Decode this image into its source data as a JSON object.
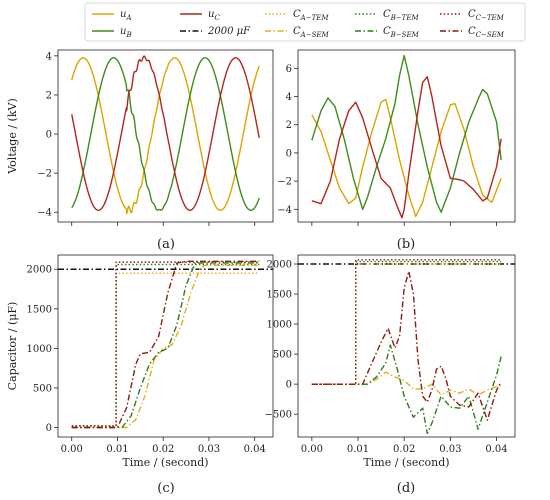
{
  "legend": {
    "entries": [
      {
        "key": "uA",
        "main": "u",
        "sub": "A",
        "color": "#d9a600",
        "dash": "solid"
      },
      {
        "key": "uC",
        "main": "u",
        "sub": "C",
        "color": "#b3261e",
        "dash": "solid"
      },
      {
        "key": "CATEM",
        "main": "C",
        "sub": "A−TEM",
        "color": "#e0b020",
        "dash": "dot"
      },
      {
        "key": "CBTEM",
        "main": "C",
        "sub": "B−TEM",
        "color": "#2e7d1a",
        "dash": "dot"
      },
      {
        "key": "CCTEM",
        "main": "C",
        "sub": "C−TEM",
        "color": "#8b1a0e",
        "dash": "dot"
      },
      {
        "key": "uB",
        "main": "u",
        "sub": "B",
        "color": "#3c8c1e",
        "dash": "solid"
      },
      {
        "key": "C2000",
        "main": "2000 μF",
        "sub": "",
        "color": "#111111",
        "dash": "dashdot"
      },
      {
        "key": "CASEM",
        "main": "C",
        "sub": "A−SEM",
        "color": "#e0b020",
        "dash": "dashdot"
      },
      {
        "key": "CBSEM",
        "main": "C",
        "sub": "B−SEM",
        "color": "#2e7d1a",
        "dash": "dashdot"
      },
      {
        "key": "CCSEM",
        "main": "C",
        "sub": "C−SEM",
        "color": "#8b1a0e",
        "dash": "dashdot"
      }
    ]
  },
  "panel_labels": [
    "(a)",
    "(b)",
    "(c)",
    "(d)"
  ],
  "chart_data": [
    {
      "panel": "(a)",
      "type": "line",
      "xlabel": "",
      "ylabel": "Voltage / (kV)",
      "xlim": [
        -0.003,
        0.044
      ],
      "ylim": [
        -4.5,
        4.3
      ],
      "yticks": [
        -4,
        -2,
        0,
        2,
        4
      ],
      "signal": {
        "amplitude": 3.9,
        "frequency_hz": 50,
        "phase_A_deg": 45,
        "t_end": 0.041
      },
      "series": [
        {
          "name": "u_A",
          "color": "#d9a600",
          "phase_deg": 45
        },
        {
          "name": "u_B",
          "color": "#3c8c1e",
          "phase_deg": -75
        },
        {
          "name": "u_C",
          "color": "#b3261e",
          "phase_deg": 165
        }
      ]
    },
    {
      "panel": "(b)",
      "type": "line",
      "xlabel": "",
      "ylabel": "",
      "xlim": [
        -0.003,
        0.044
      ],
      "ylim": [
        -4.9,
        7.3
      ],
      "yticks": [
        -4,
        -2,
        0,
        2,
        4,
        6
      ],
      "series": [
        {
          "name": "u_A",
          "color": "#d9a600",
          "points": [
            [
              0,
              2.7
            ],
            [
              0.002,
              1.5
            ],
            [
              0.004,
              -0.5
            ],
            [
              0.006,
              -2.5
            ],
            [
              0.008,
              -3.6
            ],
            [
              0.0095,
              -3.2
            ],
            [
              0.011,
              -1
            ],
            [
              0.013,
              1.5
            ],
            [
              0.015,
              3.6
            ],
            [
              0.016,
              3.8
            ],
            [
              0.017,
              2.5
            ],
            [
              0.019,
              -0.5
            ],
            [
              0.021,
              -3
            ],
            [
              0.0225,
              -4.5
            ],
            [
              0.024,
              -3.5
            ],
            [
              0.026,
              -1
            ],
            [
              0.028,
              1.5
            ],
            [
              0.03,
              3.4
            ],
            [
              0.031,
              3.5
            ],
            [
              0.033,
              1.6
            ],
            [
              0.035,
              -1
            ],
            [
              0.037,
              -3
            ],
            [
              0.039,
              -3.5
            ],
            [
              0.041,
              -1.8
            ]
          ]
        },
        {
          "name": "u_B",
          "color": "#3c8c1e",
          "points": [
            [
              0,
              0.9
            ],
            [
              0.002,
              3
            ],
            [
              0.0035,
              3.9
            ],
            [
              0.005,
              3.3
            ],
            [
              0.007,
              1
            ],
            [
              0.009,
              -1.8
            ],
            [
              0.011,
              -4
            ],
            [
              0.012,
              -3.2
            ],
            [
              0.014,
              -1
            ],
            [
              0.016,
              1
            ],
            [
              0.018,
              3.5
            ],
            [
              0.019,
              5.5
            ],
            [
              0.02,
              6.9
            ],
            [
              0.021,
              5.5
            ],
            [
              0.023,
              2
            ],
            [
              0.025,
              -1
            ],
            [
              0.027,
              -3.5
            ],
            [
              0.028,
              -4.2
            ],
            [
              0.03,
              -2.5
            ],
            [
              0.032,
              0
            ],
            [
              0.034,
              2.2
            ],
            [
              0.036,
              3.8
            ],
            [
              0.037,
              4.5
            ],
            [
              0.038,
              4.2
            ],
            [
              0.04,
              2.2
            ],
            [
              0.041,
              -0.5
            ]
          ]
        },
        {
          "name": "u_C",
          "color": "#b3261e",
          "points": [
            [
              0,
              -3.4
            ],
            [
              0.002,
              -3.6
            ],
            [
              0.004,
              -2
            ],
            [
              0.006,
              1
            ],
            [
              0.008,
              3
            ],
            [
              0.0095,
              3.6
            ],
            [
              0.011,
              2.5
            ],
            [
              0.013,
              0.3
            ],
            [
              0.015,
              -1.8
            ],
            [
              0.017,
              -2.5
            ],
            [
              0.0185,
              -3.8
            ],
            [
              0.0195,
              -4.6
            ],
            [
              0.02,
              -4
            ],
            [
              0.021,
              -1.5
            ],
            [
              0.023,
              3
            ],
            [
              0.024,
              5
            ],
            [
              0.025,
              5.4
            ],
            [
              0.026,
              4
            ],
            [
              0.028,
              0.5
            ],
            [
              0.03,
              -1.8
            ],
            [
              0.032,
              -1.9
            ],
            [
              0.033,
              -2
            ],
            [
              0.035,
              -2.6
            ],
            [
              0.037,
              -3.4
            ],
            [
              0.038,
              -3.2
            ],
            [
              0.04,
              -1
            ],
            [
              0.041,
              1
            ]
          ]
        }
      ]
    },
    {
      "panel": "(c)",
      "type": "line",
      "xlabel": "Time / (second)",
      "ylabel": "Capacitor / (μF)",
      "xlim": [
        -0.003,
        0.044
      ],
      "ylim": [
        -120,
        2180
      ],
      "xticks": [
        0.0,
        0.01,
        0.02,
        0.03,
        0.04
      ],
      "xticklabels": [
        "0.00",
        "0.01",
        "0.02",
        "0.03",
        "0.04"
      ],
      "yticks": [
        0,
        500,
        1000,
        1500,
        2000
      ],
      "series": [
        {
          "name": "2000 μF",
          "color": "#111111",
          "dash": "dashdot",
          "points": [
            [
              -0.003,
              2000
            ],
            [
              0.044,
              2000
            ]
          ]
        },
        {
          "name": "C_A-TEM",
          "color": "#e0b020",
          "dash": "dot",
          "points": [
            [
              0,
              20
            ],
            [
              0.0097,
              20
            ],
            [
              0.0097,
              1950
            ],
            [
              0.041,
              1950
            ]
          ]
        },
        {
          "name": "C_B-TEM",
          "color": "#2e7d1a",
          "dash": "dot",
          "points": [
            [
              0,
              20
            ],
            [
              0.0097,
              20
            ],
            [
              0.0097,
              2060
            ],
            [
              0.041,
              2060
            ]
          ]
        },
        {
          "name": "C_C-TEM",
          "color": "#8b1a0e",
          "dash": "dot",
          "points": [
            [
              0,
              20
            ],
            [
              0.0097,
              20
            ],
            [
              0.0097,
              2090
            ],
            [
              0.041,
              2090
            ]
          ]
        },
        {
          "name": "C_A-SEM",
          "color": "#e0b020",
          "dash": "dashdot",
          "points": [
            [
              0,
              0
            ],
            [
              0.012,
              0
            ],
            [
              0.014,
              100
            ],
            [
              0.016,
              400
            ],
            [
              0.018,
              850
            ],
            [
              0.02,
              1000
            ],
            [
              0.022,
              1050
            ],
            [
              0.024,
              1300
            ],
            [
              0.026,
              1700
            ],
            [
              0.028,
              2000
            ],
            [
              0.029,
              2050
            ],
            [
              0.041,
              2050
            ]
          ]
        },
        {
          "name": "C_B-SEM",
          "color": "#2e7d1a",
          "dash": "dashdot",
          "points": [
            [
              0,
              0
            ],
            [
              0.011,
              0
            ],
            [
              0.013,
              150
            ],
            [
              0.015,
              500
            ],
            [
              0.017,
              800
            ],
            [
              0.019,
              950
            ],
            [
              0.021,
              1000
            ],
            [
              0.023,
              1300
            ],
            [
              0.025,
              1800
            ],
            [
              0.027,
              2080
            ],
            [
              0.041,
              2080
            ]
          ]
        },
        {
          "name": "C_C-SEM",
          "color": "#8b1a0e",
          "dash": "dashdot",
          "points": [
            [
              0,
              0
            ],
            [
              0.01,
              0
            ],
            [
              0.012,
              250
            ],
            [
              0.014,
              800
            ],
            [
              0.015,
              930
            ],
            [
              0.017,
              950
            ],
            [
              0.019,
              1150
            ],
            [
              0.021,
              1700
            ],
            [
              0.023,
              2080
            ],
            [
              0.025,
              2100
            ],
            [
              0.041,
              2100
            ]
          ]
        }
      ]
    },
    {
      "panel": "(d)",
      "type": "line",
      "xlabel": "Time / (second)",
      "ylabel": "",
      "xlim": [
        -0.003,
        0.044
      ],
      "ylim": [
        -880,
        2150
      ],
      "xticks": [
        0.0,
        0.01,
        0.02,
        0.03,
        0.04
      ],
      "xticklabels": [
        "0.00",
        "0.01",
        "0.02",
        "0.03",
        "0.04"
      ],
      "yticks": [
        -500,
        0,
        500,
        1000,
        1500,
        2000
      ],
      "series": [
        {
          "name": "2000 μF",
          "color": "#111111",
          "dash": "dashdot",
          "points": [
            [
              -0.003,
              2000
            ],
            [
              0.044,
              2000
            ]
          ]
        },
        {
          "name": "C_A-TEM",
          "color": "#e0b020",
          "dash": "dot",
          "points": [
            [
              0,
              0
            ],
            [
              0.0095,
              0
            ],
            [
              0.0095,
              2000
            ],
            [
              0.041,
              2000
            ]
          ]
        },
        {
          "name": "C_B-TEM",
          "color": "#2e7d1a",
          "dash": "dot",
          "points": [
            [
              0,
              0
            ],
            [
              0.0095,
              0
            ],
            [
              0.0095,
              2040
            ],
            [
              0.041,
              2040
            ]
          ]
        },
        {
          "name": "C_C-TEM",
          "color": "#8b1a0e",
          "dash": "dot",
          "points": [
            [
              0,
              0
            ],
            [
              0.0095,
              0
            ],
            [
              0.0095,
              2070
            ],
            [
              0.041,
              2070
            ]
          ]
        },
        {
          "name": "C_A-SEM",
          "color": "#e0b020",
          "dash": "dashdot",
          "points": [
            [
              0,
              0
            ],
            [
              0.012,
              0
            ],
            [
              0.014,
              80
            ],
            [
              0.016,
              200
            ],
            [
              0.018,
              120
            ],
            [
              0.02,
              60
            ],
            [
              0.022,
              -80
            ],
            [
              0.024,
              -80
            ],
            [
              0.026,
              0
            ],
            [
              0.028,
              -180
            ],
            [
              0.03,
              -100
            ],
            [
              0.032,
              -150
            ],
            [
              0.034,
              -80
            ],
            [
              0.036,
              -180
            ],
            [
              0.038,
              -100
            ],
            [
              0.04,
              -40
            ],
            [
              0.041,
              -20
            ]
          ]
        },
        {
          "name": "C_B-SEM",
          "color": "#2e7d1a",
          "dash": "dashdot",
          "points": [
            [
              0,
              0
            ],
            [
              0.012,
              0
            ],
            [
              0.014,
              120
            ],
            [
              0.016,
              350
            ],
            [
              0.017,
              650
            ],
            [
              0.0185,
              250
            ],
            [
              0.02,
              -200
            ],
            [
              0.022,
              -550
            ],
            [
              0.024,
              -400
            ],
            [
              0.025,
              -820
            ],
            [
              0.026,
              -650
            ],
            [
              0.028,
              -200
            ],
            [
              0.03,
              -380
            ],
            [
              0.032,
              -400
            ],
            [
              0.034,
              -200
            ],
            [
              0.036,
              -750
            ],
            [
              0.038,
              -300
            ],
            [
              0.04,
              150
            ],
            [
              0.041,
              460
            ]
          ]
        },
        {
          "name": "C_C-SEM",
          "color": "#8b1a0e",
          "dash": "dashdot",
          "points": [
            [
              0,
              0
            ],
            [
              0.011,
              0
            ],
            [
              0.013,
              350
            ],
            [
              0.015,
              700
            ],
            [
              0.0165,
              930
            ],
            [
              0.018,
              600
            ],
            [
              0.019,
              800
            ],
            [
              0.02,
              1600
            ],
            [
              0.021,
              1880
            ],
            [
              0.022,
              1500
            ],
            [
              0.023,
              400
            ],
            [
              0.024,
              -200
            ],
            [
              0.025,
              -300
            ],
            [
              0.026,
              -100
            ],
            [
              0.027,
              250
            ],
            [
              0.028,
              300
            ],
            [
              0.029,
              100
            ],
            [
              0.03,
              -200
            ],
            [
              0.032,
              -350
            ],
            [
              0.034,
              -380
            ],
            [
              0.036,
              -150
            ],
            [
              0.038,
              -600
            ],
            [
              0.04,
              -100
            ],
            [
              0.041,
              40
            ]
          ]
        }
      ]
    }
  ]
}
